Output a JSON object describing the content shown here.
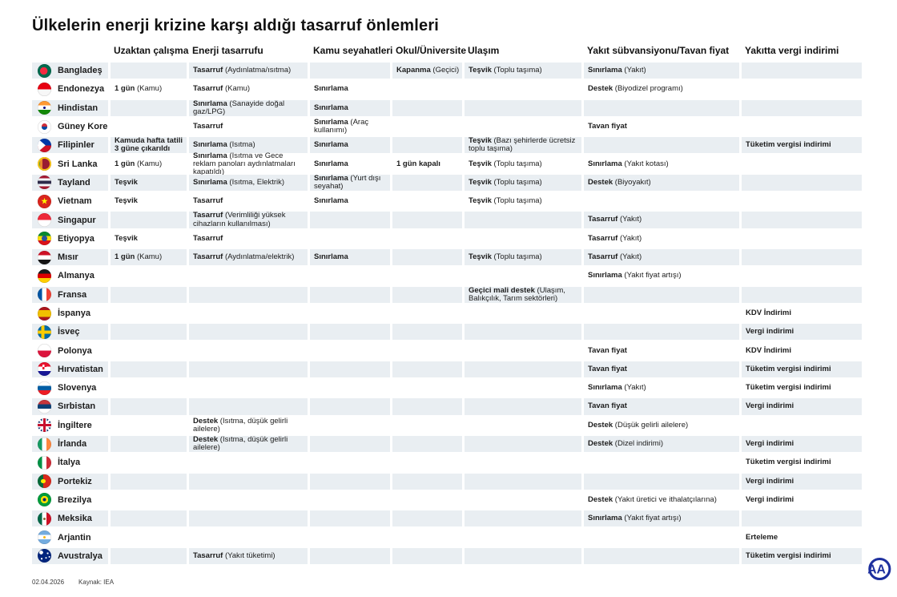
{
  "title": "Ülkelerin enerji krizine karşı aldığı tasarruf önlemleri",
  "footer": {
    "date": "02.04.2026",
    "source": "Kaynak: IEA"
  },
  "logo": {
    "label": "AA"
  },
  "colors": {
    "stripe": "#e9eef2",
    "text": "#1c1c1c",
    "logo_blue": "#1d2f9e"
  },
  "chart_data": {
    "type": "table",
    "title": "Ülkelerin enerji krizine karşı aldığı tasarruf önlemleri",
    "columns": [
      "Uzaktan çalışma",
      "Enerji tasarrufu",
      "Kamu seyahatleri",
      "Okul/Üniversite",
      "Ulaşım",
      "Yakıt sübvansiyonu/Tavan fiyat",
      "Yakıtta vergi indirimi"
    ],
    "column_keys": [
      "remote-work",
      "energy-saving",
      "public-travel",
      "school-university",
      "transport",
      "fuel-subsidy-price-cap",
      "fuel-tax-cut"
    ],
    "rows": [
      {
        "country": "Bangladeş",
        "flag": "bd",
        "cells": [
          null,
          [
            "Tasarruf",
            "(Aydınlatma/ısıtma)"
          ],
          null,
          [
            "Kapanma",
            "(Geçici)"
          ],
          [
            "Teşvik",
            "(Toplu taşıma)"
          ],
          [
            "Sınırlama",
            "(Yakıt)"
          ],
          null
        ]
      },
      {
        "country": "Endonezya",
        "flag": "id",
        "cells": [
          [
            "1 gün",
            "(Kamu)"
          ],
          [
            "Tasarruf",
            "(Kamu)"
          ],
          [
            "Sınırlama",
            ""
          ],
          null,
          null,
          [
            "Destek",
            "(Biyodizel programı)"
          ],
          null
        ]
      },
      {
        "country": "Hindistan",
        "flag": "in",
        "cells": [
          null,
          [
            "Sınırlama",
            "(Sanayide doğal gaz/LPG)"
          ],
          [
            "Sınırlama",
            ""
          ],
          null,
          null,
          null,
          null
        ]
      },
      {
        "country": "Güney Kore",
        "flag": "kr",
        "cells": [
          null,
          [
            "Tasarruf",
            ""
          ],
          [
            "Sınırlama",
            "(Araç kullanımı)"
          ],
          null,
          null,
          [
            "Tavan fiyat",
            ""
          ],
          null
        ]
      },
      {
        "country": "Filipinler",
        "flag": "ph",
        "cells": [
          [
            "Kamuda hafta tatili 3 güne çıkarıldı",
            ""
          ],
          [
            "Sınırlama",
            "(Isıtma)"
          ],
          [
            "Sınırlama",
            ""
          ],
          null,
          [
            "Teşvik",
            "(Bazı şehirlerde ücretsiz toplu taşıma)"
          ],
          null,
          [
            "Tüketim vergisi indirimi",
            ""
          ]
        ]
      },
      {
        "country": "Sri Lanka",
        "flag": "lk",
        "cells": [
          [
            "1 gün",
            "(Kamu)"
          ],
          [
            "Sınırlama",
            "(Isıtma ve Gece reklam panoları aydınlatmaları kapatıldı)"
          ],
          [
            "Sınırlama",
            ""
          ],
          [
            "1 gün kapalı",
            ""
          ],
          [
            "Teşvik",
            "(Toplu taşıma)"
          ],
          [
            "Sınırlama",
            "(Yakıt kotası)"
          ],
          null
        ]
      },
      {
        "country": "Tayland",
        "flag": "th",
        "cells": [
          [
            "Teşvik",
            ""
          ],
          [
            "Sınırlama",
            "(Isıtma, Elektrik)"
          ],
          [
            "Sınırlama",
            "(Yurt dışı seyahat)"
          ],
          null,
          [
            "Teşvik",
            "(Toplu taşıma)"
          ],
          [
            "Destek",
            "(Biyoyakıt)"
          ],
          null
        ]
      },
      {
        "country": "Vietnam",
        "flag": "vn",
        "cells": [
          [
            "Teşvik",
            ""
          ],
          [
            "Tasarruf",
            ""
          ],
          [
            "Sınırlama",
            ""
          ],
          null,
          [
            "Teşvik",
            "(Toplu taşıma)"
          ],
          null,
          null
        ]
      },
      {
        "country": "Singapur",
        "flag": "sg",
        "cells": [
          null,
          [
            "Tasarruf",
            "(Verimliliği yüksek cihazların kullanılması)"
          ],
          null,
          null,
          null,
          [
            "Tasarruf",
            "(Yakıt)"
          ],
          null
        ]
      },
      {
        "country": "Etiyopya",
        "flag": "et",
        "cells": [
          [
            "Teşvik",
            ""
          ],
          [
            "Tasarruf",
            ""
          ],
          null,
          null,
          null,
          [
            "Tasarruf",
            "(Yakıt)"
          ],
          null
        ]
      },
      {
        "country": "Mısır",
        "flag": "eg",
        "cells": [
          [
            "1 gün",
            "(Kamu)"
          ],
          [
            "Tasarruf",
            "(Aydınlatma/elektrik)"
          ],
          [
            "Sınırlama",
            ""
          ],
          null,
          [
            "Teşvik",
            "(Toplu taşıma)"
          ],
          [
            "Tasarruf",
            "(Yakıt)"
          ],
          null
        ]
      },
      {
        "country": "Almanya",
        "flag": "de",
        "cells": [
          null,
          null,
          null,
          null,
          null,
          [
            "Sınırlama",
            "(Yakıt fiyat artışı)"
          ],
          null
        ]
      },
      {
        "country": "Fransa",
        "flag": "fr",
        "cells": [
          null,
          null,
          null,
          null,
          [
            "Geçici mali destek",
            "(Ulaşım, Balıkçılık, Tarım sektörleri)"
          ],
          null,
          null
        ]
      },
      {
        "country": "İspanya",
        "flag": "es",
        "cells": [
          null,
          null,
          null,
          null,
          null,
          null,
          [
            "KDV İndirimi",
            ""
          ]
        ]
      },
      {
        "country": "İsveç",
        "flag": "se",
        "cells": [
          null,
          null,
          null,
          null,
          null,
          null,
          [
            "Vergi indirimi",
            ""
          ]
        ]
      },
      {
        "country": "Polonya",
        "flag": "pl",
        "cells": [
          null,
          null,
          null,
          null,
          null,
          [
            "Tavan fiyat",
            ""
          ],
          [
            "KDV İndirimi",
            ""
          ]
        ]
      },
      {
        "country": "Hırvatistan",
        "flag": "hr",
        "cells": [
          null,
          null,
          null,
          null,
          null,
          [
            "Tavan fiyat",
            ""
          ],
          [
            "Tüketim vergisi indirimi",
            ""
          ]
        ]
      },
      {
        "country": "Slovenya",
        "flag": "si",
        "cells": [
          null,
          null,
          null,
          null,
          null,
          [
            "Sınırlama",
            "(Yakıt)"
          ],
          [
            "Tüketim vergisi indirimi",
            ""
          ]
        ]
      },
      {
        "country": "Sırbistan",
        "flag": "rs",
        "cells": [
          null,
          null,
          null,
          null,
          null,
          [
            "Tavan fiyat",
            ""
          ],
          [
            "Vergi indirimi",
            ""
          ]
        ]
      },
      {
        "country": "İngiltere",
        "flag": "gb",
        "cells": [
          null,
          [
            "Destek",
            "(Isıtma, düşük gelirli ailelere)"
          ],
          null,
          null,
          null,
          [
            "Destek",
            "(Düşük gelirli ailelere)"
          ],
          null
        ]
      },
      {
        "country": "İrlanda",
        "flag": "ie",
        "cells": [
          null,
          [
            "Destek",
            "(Isıtma, düşük gelirli ailelere)"
          ],
          null,
          null,
          null,
          [
            "Destek",
            "(Dizel indirimi)"
          ],
          [
            "Vergi indirimi",
            ""
          ]
        ]
      },
      {
        "country": "İtalya",
        "flag": "it",
        "cells": [
          null,
          null,
          null,
          null,
          null,
          null,
          [
            "Tüketim vergisi indirimi",
            ""
          ]
        ]
      },
      {
        "country": "Portekiz",
        "flag": "pt",
        "cells": [
          null,
          null,
          null,
          null,
          null,
          null,
          [
            "Vergi indirimi",
            ""
          ]
        ]
      },
      {
        "country": "Brezilya",
        "flag": "br",
        "cells": [
          null,
          null,
          null,
          null,
          null,
          [
            "Destek",
            "(Yakıt üretici ve ithalatçılarına)"
          ],
          [
            "Vergi indirimi",
            ""
          ]
        ]
      },
      {
        "country": "Meksika",
        "flag": "mx",
        "cells": [
          null,
          null,
          null,
          null,
          null,
          [
            "Sınırlama",
            "(Yakıt fiyat artışı)"
          ],
          null
        ]
      },
      {
        "country": "Arjantin",
        "flag": "ar",
        "cells": [
          null,
          null,
          null,
          null,
          null,
          null,
          [
            "Erteleme",
            ""
          ]
        ]
      },
      {
        "country": "Avustralya",
        "flag": "au",
        "cells": [
          null,
          [
            "Tasarruf",
            "(Yakıt tüketimi)"
          ],
          null,
          null,
          null,
          null,
          [
            "Tüketim vergisi indirimi",
            ""
          ]
        ]
      }
    ]
  }
}
